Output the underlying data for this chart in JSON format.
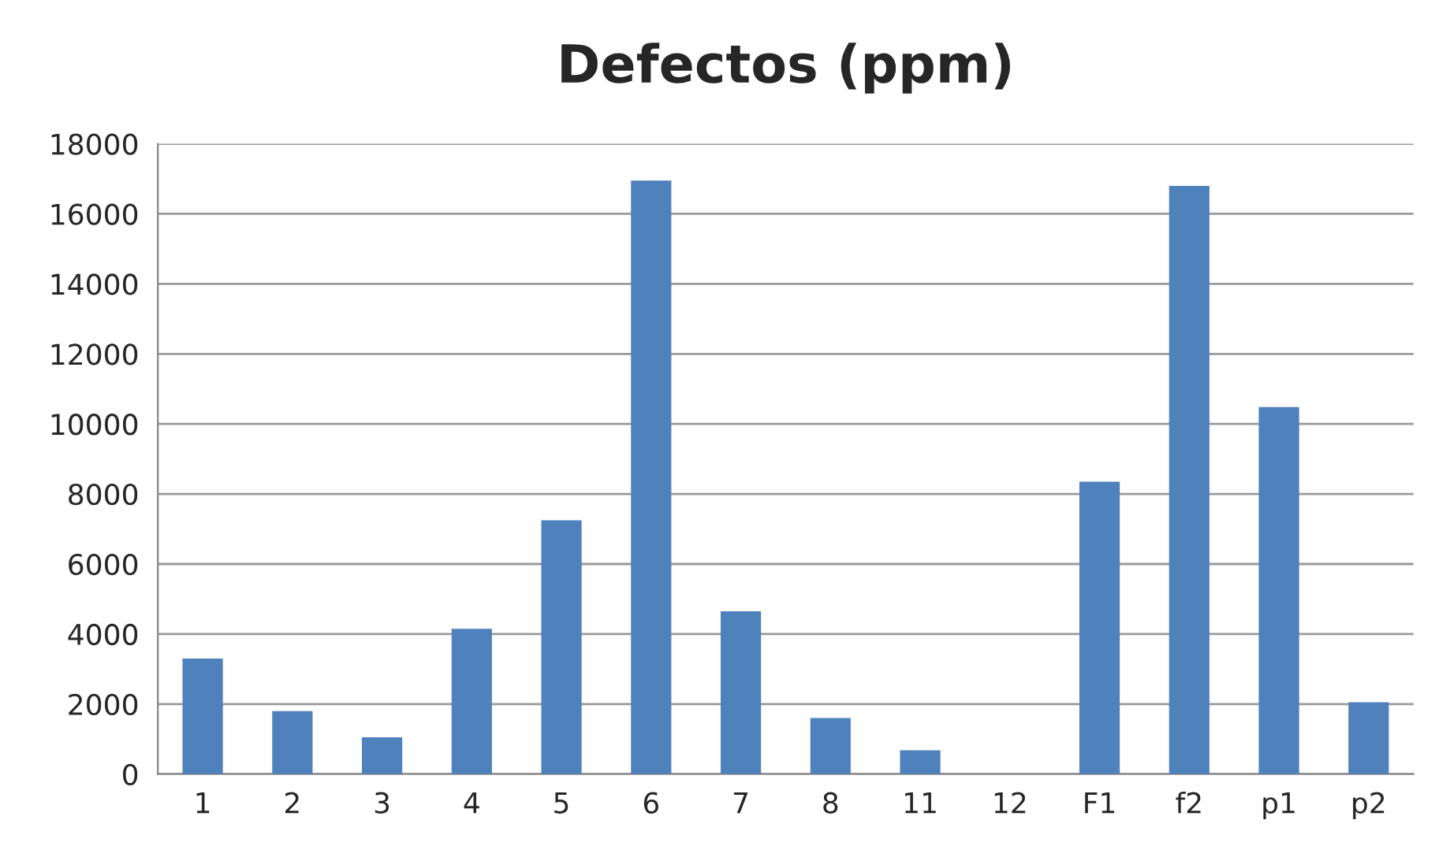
{
  "chart_data": {
    "type": "bar",
    "title": "Defectos (ppm)",
    "categories": [
      "1",
      "2",
      "3",
      "4",
      "5",
      "6",
      "7",
      "8",
      "11",
      "12",
      "F1",
      "f2",
      "p1",
      "p2"
    ],
    "values": [
      3300,
      1800,
      1050,
      4150,
      7250,
      16950,
      4650,
      1600,
      680,
      0,
      8350,
      16800,
      10480,
      2050
    ],
    "color": "#4f81bd",
    "ylim": [
      0,
      18000
    ],
    "yticks": [
      0,
      2000,
      4000,
      6000,
      8000,
      10000,
      12000,
      14000,
      16000,
      18000
    ],
    "grid": "y",
    "legend": false
  }
}
